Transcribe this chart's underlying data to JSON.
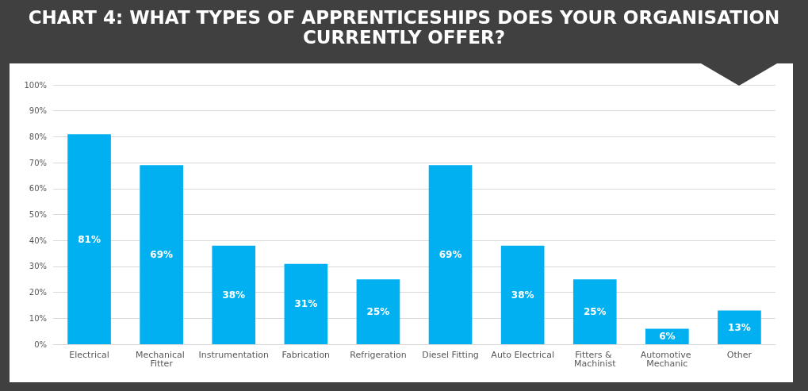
{
  "chart_data": {
    "type": "bar",
    "title": "CHART 4: WHAT TYPES OF APPRENTICESHIPS DOES YOUR ORGANISATION CURRENTLY OFFER?",
    "categories": [
      "Electrical",
      "Mechanical Fitter",
      "Instrumentation",
      "Fabrication",
      "Refrigeration",
      "Diesel Fitting",
      "Auto Electrical",
      "Fitters & Machinist",
      "Automotive Mechanic",
      "Other"
    ],
    "values": [
      81,
      69,
      38,
      31,
      25,
      69,
      38,
      25,
      6,
      13
    ],
    "value_labels": [
      "81%",
      "69%",
      "38%",
      "31%",
      "25%",
      "69%",
      "38%",
      "25%",
      "6%",
      "13%"
    ],
    "color": "#00b0f0",
    "ylim": [
      0,
      100
    ],
    "yticks": [
      {
        "value": 0,
        "label": "0%"
      },
      {
        "value": 10,
        "label": "10%"
      },
      {
        "value": 20,
        "label": "20%"
      },
      {
        "value": 30,
        "label": "30%"
      },
      {
        "value": 40,
        "label": "40%"
      },
      {
        "value": 50,
        "label": "50%"
      },
      {
        "value": 60,
        "label": "60%"
      },
      {
        "value": 70,
        "label": "70%"
      },
      {
        "value": 80,
        "label": "80%"
      },
      {
        "value": 90,
        "label": "90%"
      },
      {
        "value": 100,
        "label": "100%"
      }
    ],
    "grid": "y"
  }
}
